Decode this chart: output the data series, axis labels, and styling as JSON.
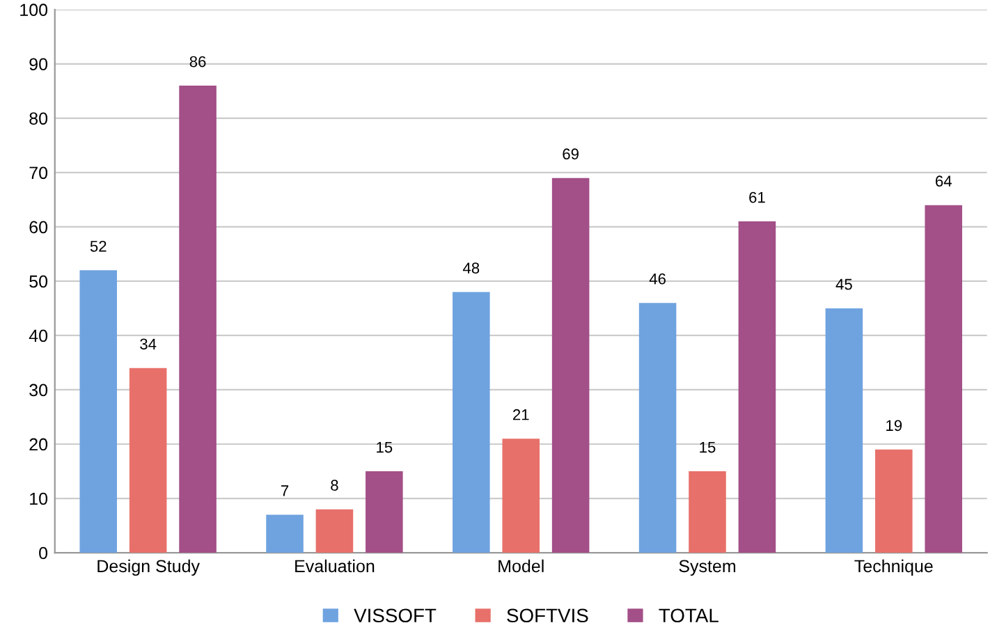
{
  "chart_data": {
    "type": "bar",
    "categories": [
      "Design Study",
      "Evaluation",
      "Model",
      "System",
      "Technique"
    ],
    "series": [
      {
        "name": "VISSOFT",
        "color": "#6fa3e0",
        "values": [
          52,
          7,
          48,
          46,
          45
        ]
      },
      {
        "name": "SOFTVIS",
        "color": "#e8706a",
        "values": [
          34,
          8,
          21,
          15,
          19
        ]
      },
      {
        "name": "TOTAL",
        "color": "#a34f88",
        "values": [
          86,
          15,
          69,
          61,
          64
        ]
      }
    ],
    "ylim": [
      0,
      100
    ],
    "yticks": [
      0,
      10,
      20,
      30,
      40,
      50,
      60,
      70,
      80,
      90,
      100
    ],
    "grid": "y",
    "legend": "bottom",
    "data_labels": true
  }
}
